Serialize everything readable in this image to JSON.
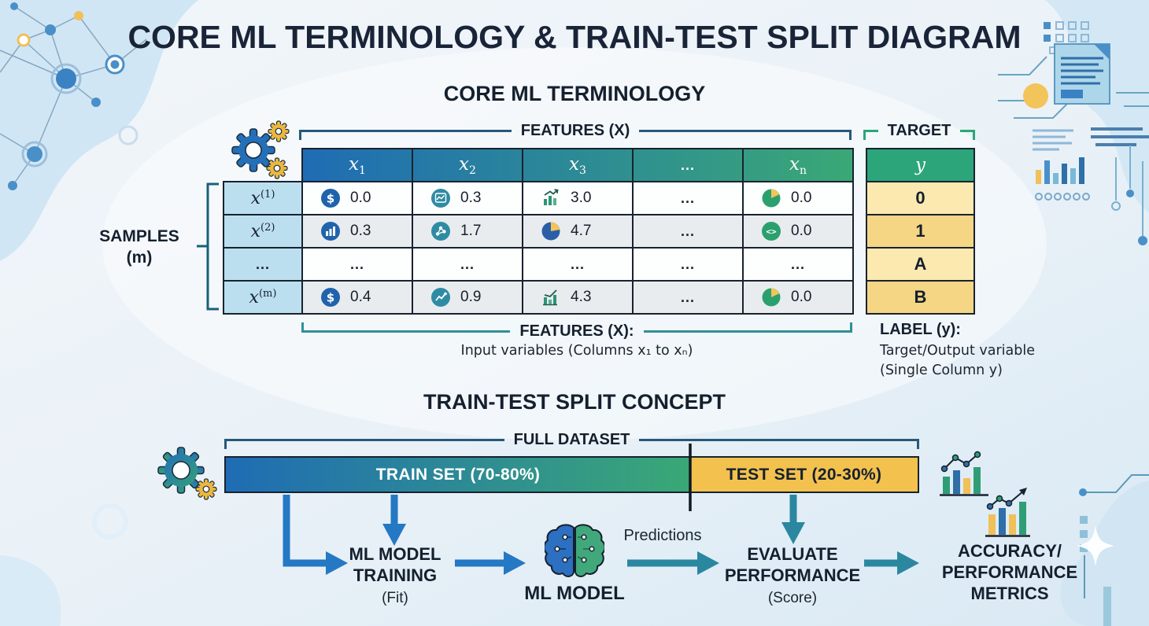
{
  "title": "CORE ML TERMINOLOGY & TRAIN-TEST SPLIT DIAGRAM",
  "terminology": {
    "heading": "CORE ML TERMINOLOGY",
    "features_bracket_label": "FEATURES (X)",
    "target_bracket_label": "TARGET",
    "samples": {
      "line1": "SAMPLES",
      "line2": "(m)"
    },
    "table": {
      "columns": [
        {
          "base": "x",
          "sub": "1"
        },
        {
          "base": "x",
          "sub": "2"
        },
        {
          "base": "x",
          "sub": "3"
        },
        {
          "dots": true
        },
        {
          "base": "x",
          "sub": "n"
        }
      ],
      "rows": [
        {
          "label": {
            "base": "x",
            "sup": "(1)"
          },
          "cells": [
            {
              "icon": "money",
              "value": "0.0"
            },
            {
              "icon": "area-chart",
              "value": "0.3"
            },
            {
              "icon": "bar-growth",
              "value": "3.0"
            },
            {
              "dots": true
            },
            {
              "icon": "pie-green",
              "value": "0.0"
            }
          ]
        },
        {
          "label": {
            "base": "x",
            "sup": "(2)"
          },
          "cells": [
            {
              "icon": "bar-chart",
              "value": "0.3"
            },
            {
              "icon": "scatter",
              "value": "1.7"
            },
            {
              "icon": "pie-blue",
              "value": "4.7"
            },
            {
              "dots": true
            },
            {
              "icon": "code",
              "value": "0.0"
            }
          ]
        },
        {
          "label": {
            "dots": true
          },
          "cells": [
            {
              "dots": true
            },
            {
              "dots": true
            },
            {
              "dots": true
            },
            {
              "dots": true
            },
            {
              "dots": true
            }
          ]
        },
        {
          "label": {
            "base": "x",
            "sup": "(m)"
          },
          "cells": [
            {
              "icon": "money",
              "value": "0.4"
            },
            {
              "icon": "line-chart",
              "value": "0.9"
            },
            {
              "icon": "bar-line",
              "value": "4.3"
            },
            {
              "dots": true
            },
            {
              "icon": "pie-green",
              "value": "0.0"
            }
          ]
        }
      ]
    },
    "target_table": {
      "header": "y",
      "rows": [
        "0",
        "1",
        "A",
        "B"
      ]
    },
    "captions": {
      "features_title": "FEATURES (X):",
      "features_body": "Input variables (Columns x₁ to xₙ)",
      "label_title": "LABEL (y):",
      "label_line1": "Target/Output variable",
      "label_line2": "(Single Column y)"
    }
  },
  "split": {
    "heading": "TRAIN-TEST SPLIT CONCEPT",
    "full_dataset_label": "FULL DATASET",
    "train_label": "TRAIN SET (70-80%)",
    "test_label": "TEST SET (20-30%)",
    "flow": {
      "training_line1": "ML MODEL",
      "training_line2": "TRAINING",
      "training_sub": "(Fit)",
      "model_label": "ML MODEL",
      "predictions_label": "Predictions",
      "evaluate_line1": "EVALUATE",
      "evaluate_line2": "PERFORMANCE",
      "evaluate_sub": "(Score)",
      "metrics_line1": "ACCURACY/",
      "metrics_line2": "PERFORMANCE",
      "metrics_line3": "METRICS"
    }
  },
  "colors": {
    "title_navy": "#1a2438",
    "accent_blue": "#1f6cb4",
    "accent_green": "#3aa876",
    "test_gold": "#f3c14e",
    "target_green": "#2ba579",
    "target_light": "#fce9b0",
    "target_dark": "#f5d684",
    "row_label_blue": "#bcdff0",
    "alt_row": "#e9ecef",
    "arrow_blue": "#2478c4",
    "arrow_teal": "#2b87a0",
    "bracket_blue": "#27587a",
    "bracket_teal": "#2f9096",
    "bracket_green": "#2ba577"
  }
}
